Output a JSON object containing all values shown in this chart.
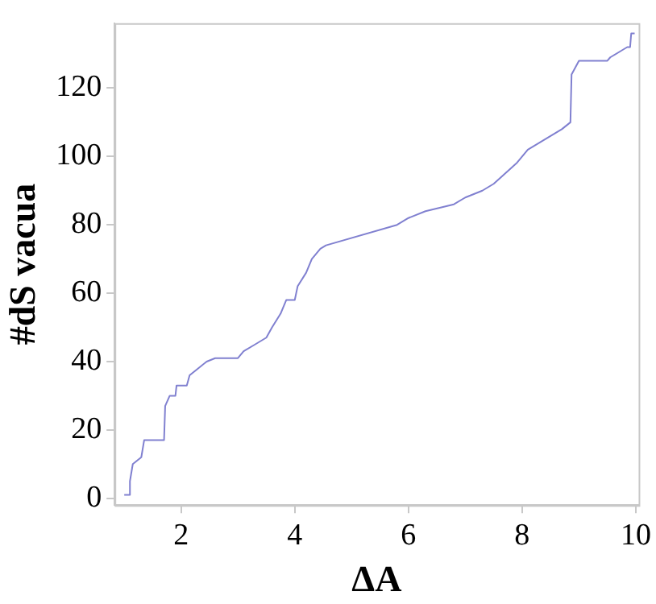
{
  "chart_data": {
    "type": "line",
    "xlabel": "ΔA",
    "ylabel": "#dS vacua",
    "x": [
      1.0,
      1.1,
      1.1,
      1.15,
      1.3,
      1.35,
      1.7,
      1.72,
      1.8,
      1.9,
      1.92,
      2.1,
      2.15,
      2.3,
      2.45,
      2.6,
      3.0,
      3.1,
      3.3,
      3.5,
      3.6,
      3.75,
      3.85,
      4.0,
      4.05,
      4.2,
      4.3,
      4.45,
      4.55,
      5.8,
      6.0,
      6.3,
      6.8,
      7.0,
      7.3,
      7.5,
      7.7,
      7.9,
      8.1,
      8.3,
      8.5,
      8.7,
      8.85,
      8.87,
      9.0,
      9.5,
      9.55,
      9.75,
      9.85,
      9.9,
      9.92,
      9.98
    ],
    "series": [
      {
        "color": "#8080d0",
        "values": [
          1,
          1,
          5,
          10,
          12,
          17,
          17,
          27,
          30,
          30,
          33,
          33,
          36,
          38,
          40,
          41,
          41,
          43,
          45,
          47,
          50,
          54,
          58,
          58,
          62,
          66,
          70,
          73,
          74,
          80,
          82,
          84,
          86,
          88,
          90,
          92,
          95,
          98,
          102,
          104,
          106,
          108,
          110,
          124,
          128,
          128,
          129,
          131,
          132,
          132,
          136,
          136
        ]
      }
    ],
    "xlim": [
      0.83,
      10.05
    ],
    "ylim": [
      -2,
      139
    ],
    "xticks": [
      2,
      4,
      6,
      8,
      10
    ],
    "yticks": [
      0,
      20,
      40,
      60,
      80,
      100,
      120
    ],
    "grid": false,
    "legend": false,
    "marker": "none",
    "line_style": "solid"
  }
}
